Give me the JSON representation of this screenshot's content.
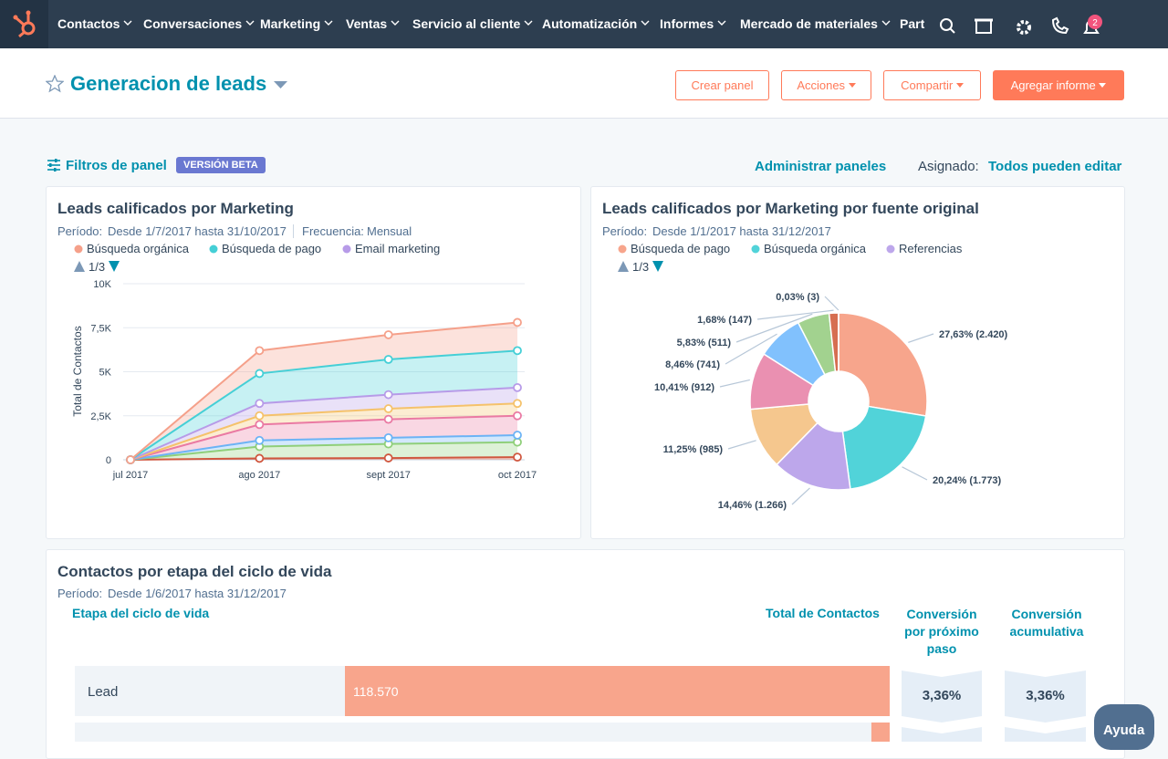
{
  "nav": {
    "items": [
      "Contactos",
      "Conversaciones",
      "Marketing",
      "Ventas",
      "Servicio al cliente",
      "Automatización",
      "Informes",
      "Mercado de materiales",
      "Part"
    ],
    "notifications": "2"
  },
  "header": {
    "title": "Generacion de leads",
    "buttons": [
      "Crear panel",
      "Acciones",
      "Compartir",
      "Agregar informe"
    ]
  },
  "filters": {
    "label": "Filtros de panel",
    "badge": "VERSIÓN BETA",
    "manage": "Administrar paneles",
    "assigned_label": "Asignado:",
    "assigned_value": "Todos pueden editar"
  },
  "chart_data": [
    {
      "type": "area",
      "stacked": true,
      "title": "Leads calificados por Marketing",
      "period_label": "Período:",
      "period": "Desde 1/7/2017 hasta 31/10/2017",
      "frequency_label": "Frecuencia:",
      "frequency": "Mensual",
      "legend_pager": "1/3",
      "y_label": "Total de Contactos",
      "categories": [
        "jul 2017",
        "ago 2017",
        "sept 2017",
        "oct 2017"
      ],
      "ylim": [
        0,
        10000
      ],
      "yticks": [
        0,
        {
          "value": 2500,
          "label": "2,5K"
        },
        {
          "value": 5000,
          "label": "5K"
        },
        {
          "value": 7500,
          "label": "7,5K"
        },
        {
          "value": 10000,
          "label": "10K"
        }
      ],
      "grid": true,
      "series": [
        {
          "name": "Búsqueda orgánica",
          "color": "#f5a08a",
          "values": [
            0,
            1300,
            1400,
            1600
          ]
        },
        {
          "name": "Búsqueda de pago",
          "color": "#45cfd6",
          "values": [
            0,
            1700,
            2000,
            2100
          ]
        },
        {
          "name": "Email marketing",
          "color": "#b79be8",
          "values": [
            0,
            700,
            800,
            900
          ]
        },
        {
          "color": "#f5c26b",
          "values": [
            0,
            500,
            600,
            700
          ]
        },
        {
          "color": "#ea7aa3",
          "values": [
            0,
            900,
            1050,
            1100
          ]
        },
        {
          "color": "#6cb3f5",
          "values": [
            0,
            350,
            350,
            400
          ]
        },
        {
          "color": "#8fcf7a",
          "values": [
            0,
            670,
            800,
            850
          ]
        },
        {
          "color": "#d0573f",
          "values": [
            0,
            80,
            100,
            150
          ]
        }
      ]
    },
    {
      "type": "donut",
      "title": "Leads calificados por Marketing por fuente original",
      "period_label": "Período:",
      "period": "Desde 1/1/2017 hasta 31/12/2017",
      "legend_pager": "1/3",
      "legend": [
        {
          "name": "Búsqueda de pago",
          "color": "#f7a58c"
        },
        {
          "name": "Búsqueda orgánica",
          "color": "#51d3d9"
        },
        {
          "name": "Referencias",
          "color": "#bda7eb"
        }
      ],
      "values": [
        2420,
        1773,
        1266,
        985,
        912,
        741,
        511,
        147,
        3
      ],
      "value_labels": [
        "27,63% (2.420)",
        "20,24% (1.773)",
        "14,46% (1.266)",
        "11,25% (985)",
        "10,41% (912)",
        "8,46% (741)",
        "5,83% (511)",
        "1,68% (147)",
        "0,03% (3)"
      ],
      "colors": [
        "#f7a58c",
        "#51d3d9",
        "#bda7eb",
        "#f5c78e",
        "#ea90b1",
        "#81c1fd",
        "#a2d28f",
        "#d66e51",
        "#e8b060"
      ]
    }
  ],
  "table": {
    "title": "Contactos por etapa del ciclo de vida",
    "period_label": "Período:",
    "period": "Desde 1/6/2017 hasta 31/12/2017",
    "headers": [
      "Etapa del ciclo de vida",
      "Total de Contactos",
      "Conversión por próximo paso",
      "Conversión acumulativa"
    ],
    "xlim": [
      0,
      118570
    ],
    "rows": [
      {
        "stage": "Lead",
        "value": 118570,
        "value_label": "118.570",
        "next": "3,36%",
        "cumulative": "3,36%"
      },
      {
        "value": 3984
      }
    ]
  },
  "help": "Ayuda"
}
